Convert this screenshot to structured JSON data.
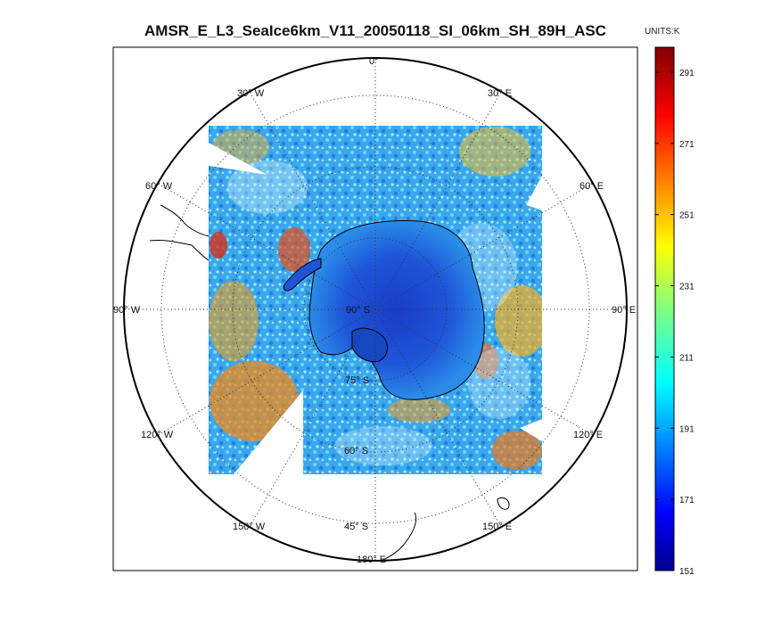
{
  "title": "AMSR_E_L3_SeaIce6km_V11_20050118_SI_06km_SH_89H_ASC",
  "colorbar": {
    "units": "UNITS:K",
    "ticks": [
      "151",
      "171",
      "191",
      "211",
      "231",
      "251",
      "271",
      "291"
    ],
    "range": [
      151,
      298
    ],
    "colormap": "jet"
  },
  "map": {
    "projection": "south polar stereographic",
    "meridian_labels": {
      "m0": "0°",
      "m30e": "30° E",
      "m60e": "60° E",
      "m90e": "90° E",
      "m120e": "120° E",
      "m150e": "150° E",
      "m180": "180° E",
      "m150w": "150° W",
      "m120w": "120° W",
      "m90w": "90° W",
      "m60w": "60° W",
      "m30w": "30° W"
    },
    "parallel_labels": {
      "p90": "90° S",
      "p75": "75° S",
      "p60": "60° S",
      "p45": "45° S"
    },
    "colors": {
      "deep_blue": "#1c3fc4",
      "ocean_cyan": "#2bb6f0",
      "warm_orange": "#f08a1a",
      "frame": "#000000"
    }
  }
}
